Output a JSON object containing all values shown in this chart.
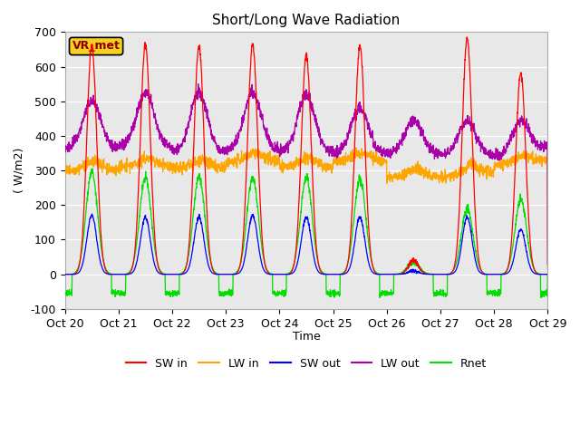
{
  "title": "Short/Long Wave Radiation",
  "ylabel": "( W/m2)",
  "xlabel": "Time",
  "site_label": "VR_met",
  "ylim": [
    -100,
    700
  ],
  "yticks": [
    -100,
    0,
    100,
    200,
    300,
    400,
    500,
    600,
    700
  ],
  "xtick_labels": [
    "Oct 20",
    "Oct 21",
    "Oct 22",
    "Oct 23",
    "Oct 24",
    "Oct 25",
    "Oct 26",
    "Oct 27",
    "Oct 28",
    "Oct 29"
  ],
  "colors": {
    "SW_in": "#ff0000",
    "LW_in": "#ffa500",
    "SW_out": "#0000ff",
    "LW_out": "#aa00aa",
    "Rnet": "#00dd00"
  },
  "legend_labels": [
    "SW in",
    "LW in",
    "SW out",
    "LW out",
    "Rnet"
  ],
  "bg_color": "#e8e8e8",
  "fig_bg": "#ffffff",
  "n_points": 2160,
  "days": 9
}
